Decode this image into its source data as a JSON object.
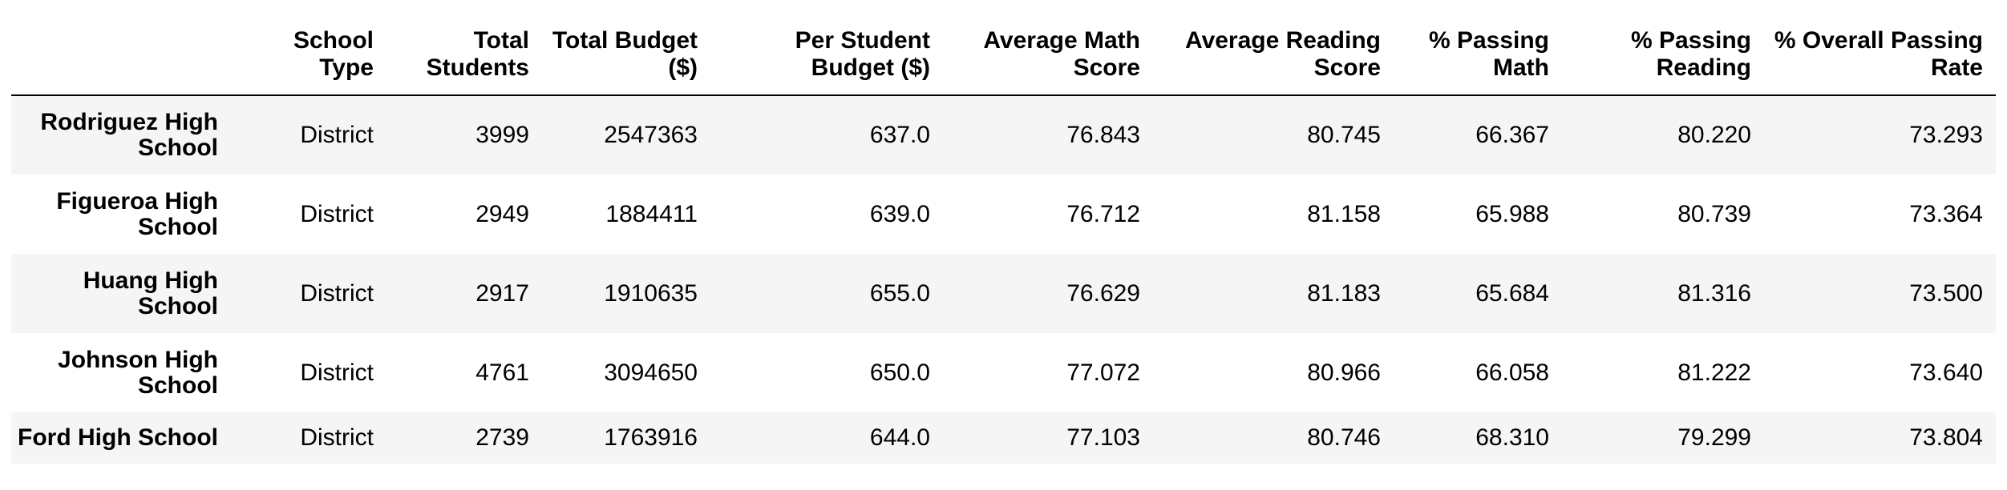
{
  "table": {
    "index_header": "",
    "columns": [
      "School Type",
      "Total Students",
      "Total Budget ($)",
      "Per Student Budget ($)",
      "Average Math Score",
      "Average Reading Score",
      "% Passing Math",
      "% Passing Reading",
      "% Overall Passing Rate"
    ],
    "rows": [
      {
        "school": "Rodriguez High School",
        "cells": [
          "District",
          "3999",
          "2547363",
          "637.0",
          "76.843",
          "80.745",
          "66.367",
          "80.220",
          "73.293"
        ]
      },
      {
        "school": "Figueroa High School",
        "cells": [
          "District",
          "2949",
          "1884411",
          "639.0",
          "76.712",
          "81.158",
          "65.988",
          "80.739",
          "73.364"
        ]
      },
      {
        "school": "Huang High School",
        "cells": [
          "District",
          "2917",
          "1910635",
          "655.0",
          "76.629",
          "81.183",
          "65.684",
          "81.316",
          "73.500"
        ]
      },
      {
        "school": "Johnson High School",
        "cells": [
          "District",
          "4761",
          "3094650",
          "650.0",
          "77.072",
          "80.966",
          "66.058",
          "81.222",
          "73.640"
        ]
      },
      {
        "school": "Ford High School",
        "cells": [
          "District",
          "2739",
          "1763916",
          "644.0",
          "77.103",
          "80.746",
          "68.310",
          "79.299",
          "73.804"
        ]
      }
    ]
  }
}
